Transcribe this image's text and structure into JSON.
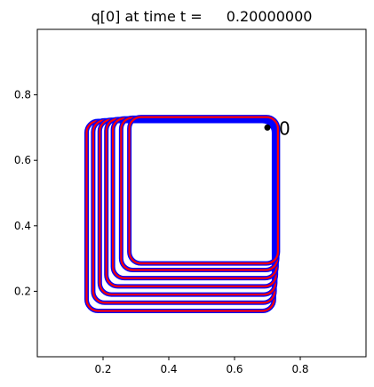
{
  "chart_data": {
    "type": "line",
    "title_prefix": "q[0] at time t =",
    "title_value": "0.20000000",
    "xlabel": "",
    "ylabel": "",
    "xlim": [
      0.0,
      1.0
    ],
    "ylim": [
      0.0,
      1.0
    ],
    "xticks": [
      0.2,
      0.4,
      0.6,
      0.8
    ],
    "yticks": [
      0.2,
      0.4,
      0.6,
      0.8
    ],
    "xtick_labels": [
      "0.2",
      "0.4",
      "0.6",
      "0.8"
    ],
    "ytick_labels": [
      "0.2",
      "0.4",
      "0.6",
      "0.8"
    ],
    "grid": false,
    "outer_loop_color": "#0000ff",
    "inner_loop_color": "#ff0000",
    "point_color": "#000000",
    "loops": [
      {
        "x0": 0.15,
        "y0": 0.14,
        "x1": 0.72,
        "y1": 0.72,
        "r": 0.035
      },
      {
        "x0": 0.17,
        "y0": 0.165,
        "x1": 0.722,
        "y1": 0.722,
        "r": 0.035
      },
      {
        "x0": 0.19,
        "y0": 0.19,
        "x1": 0.724,
        "y1": 0.724,
        "r": 0.035
      },
      {
        "x0": 0.21,
        "y0": 0.215,
        "x1": 0.726,
        "y1": 0.726,
        "r": 0.035
      },
      {
        "x0": 0.23,
        "y0": 0.24,
        "x1": 0.728,
        "y1": 0.728,
        "r": 0.035
      },
      {
        "x0": 0.255,
        "y0": 0.265,
        "x1": 0.73,
        "y1": 0.73,
        "r": 0.035
      },
      {
        "x0": 0.28,
        "y0": 0.285,
        "x1": 0.732,
        "y1": 0.732,
        "r": 0.035
      }
    ],
    "annotation": {
      "text": "0",
      "x": 0.7,
      "y": 0.7
    }
  }
}
